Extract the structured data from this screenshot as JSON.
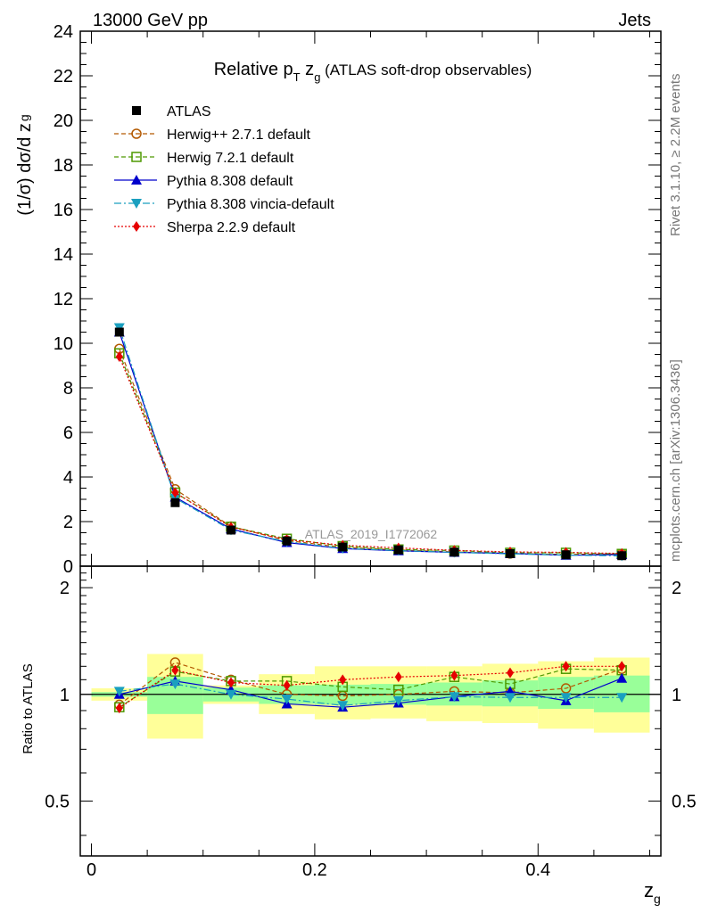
{
  "header": {
    "left": "13000 GeV pp",
    "right": "Jets"
  },
  "side_text": {
    "top": "Rivet 3.1.10, ≥ 2.2M events",
    "bottom": "mcplots.cern.ch [arXiv:1306.3436]"
  },
  "watermark": "ATLAS_2019_I1772062",
  "chart_data": [
    {
      "type": "line",
      "panel": "main",
      "title": "Relative p_T z_g (ATLAS soft-drop observables)",
      "title_parts": {
        "pre": "Relative p",
        "sub1": "T",
        "mid": " z",
        "sub2": "g",
        "post": " (ATLAS soft-drop observables)"
      },
      "ylabel": "(1/σ) dσ/d z_g",
      "ylabel_parts": {
        "main": "(1/σ) dσ/d z",
        "sub": "g"
      },
      "xlabel": "z_g",
      "ylim": [
        0,
        24
      ],
      "xlim": [
        -0.01,
        0.51
      ],
      "yticks": [
        0,
        2,
        4,
        6,
        8,
        10,
        12,
        14,
        16,
        18,
        20,
        22,
        24
      ],
      "x": [
        0.025,
        0.075,
        0.125,
        0.175,
        0.225,
        0.275,
        0.325,
        0.375,
        0.425,
        0.475
      ],
      "series": [
        {
          "name": "ATLAS",
          "color": "#000000",
          "marker": "square",
          "values": [
            10.5,
            2.85,
            1.62,
            1.13,
            0.86,
            0.73,
            0.63,
            0.56,
            0.51,
            0.47
          ]
        },
        {
          "name": "Herwig++ 2.7.1 default",
          "color": "#b35900",
          "marker": "circle-open",
          "dash": "5,3",
          "values": [
            9.75,
            3.45,
            1.78,
            1.15,
            0.85,
            0.73,
            0.64,
            0.565,
            0.53,
            0.55
          ]
        },
        {
          "name": "Herwig 7.2.1 default",
          "color": "#4d9900",
          "marker": "square-open",
          "dash": "5,3",
          "values": [
            9.55,
            3.3,
            1.77,
            1.23,
            0.9,
            0.75,
            0.7,
            0.6,
            0.6,
            0.55
          ]
        },
        {
          "name": "Pythia 8.308 default",
          "color": "#0000cc",
          "marker": "triangle-up",
          "dash": "",
          "values": [
            10.5,
            3.1,
            1.67,
            1.06,
            0.79,
            0.69,
            0.62,
            0.57,
            0.49,
            0.52
          ]
        },
        {
          "name": "Pythia 8.308 vincia-default",
          "color": "#1a9fbf",
          "marker": "triangle-down",
          "dash": "8,3,2,3",
          "values": [
            10.7,
            3.05,
            1.62,
            1.1,
            0.8,
            0.7,
            0.62,
            0.55,
            0.5,
            0.46
          ]
        },
        {
          "name": "Sherpa 2.2.9 default",
          "color": "#e60000",
          "marker": "diamond",
          "dash": "2,2",
          "values": [
            9.4,
            3.3,
            1.75,
            1.19,
            0.94,
            0.82,
            0.71,
            0.64,
            0.62,
            0.57
          ]
        }
      ]
    },
    {
      "type": "line",
      "panel": "ratio",
      "ylabel": "Ratio to ATLAS",
      "ylim": [
        0.35,
        2.3
      ],
      "yscale": "log",
      "yticks": [
        0.5,
        1,
        2
      ],
      "x": [
        0.025,
        0.075,
        0.125,
        0.175,
        0.225,
        0.275,
        0.325,
        0.375,
        0.425,
        0.475
      ],
      "band_inner": {
        "color": "#99ff99",
        "lo": [
          0.985,
          0.88,
          0.955,
          0.94,
          0.935,
          0.935,
          0.93,
          0.925,
          0.91,
          0.89
        ],
        "hi": [
          1.015,
          1.12,
          1.045,
          1.06,
          1.065,
          1.07,
          1.08,
          1.095,
          1.12,
          1.13
        ]
      },
      "band_outer": {
        "color": "#ffff99",
        "lo": [
          0.96,
          0.75,
          0.94,
          0.88,
          0.85,
          0.855,
          0.84,
          0.83,
          0.8,
          0.78
        ],
        "hi": [
          1.04,
          1.3,
          1.06,
          1.14,
          1.2,
          1.2,
          1.2,
          1.22,
          1.24,
          1.27
        ]
      },
      "series": [
        {
          "name": "Herwig++ 2.7.1 default",
          "values": [
            0.935,
            1.23,
            1.1,
            1.0,
            0.99,
            1.0,
            1.02,
            1.01,
            1.04,
            1.18
          ]
        },
        {
          "name": "Herwig 7.2.1 default",
          "values": [
            0.92,
            1.16,
            1.09,
            1.09,
            1.05,
            1.03,
            1.12,
            1.07,
            1.18,
            1.17
          ]
        },
        {
          "name": "Pythia 8.308 default",
          "values": [
            1.0,
            1.09,
            1.03,
            0.94,
            0.92,
            0.945,
            0.985,
            1.02,
            0.96,
            1.11
          ]
        },
        {
          "name": "Pythia 8.308 vincia-default",
          "values": [
            1.02,
            1.07,
            1.0,
            0.97,
            0.93,
            0.96,
            0.985,
            0.98,
            0.98,
            0.98
          ]
        },
        {
          "name": "Sherpa 2.2.9 default",
          "values": [
            0.915,
            1.17,
            1.08,
            1.06,
            1.1,
            1.12,
            1.13,
            1.15,
            1.2,
            1.2
          ]
        }
      ]
    }
  ],
  "xaxis": {
    "ticks": [
      0,
      0.2,
      0.4
    ],
    "tick_labels": [
      "0",
      "0.2",
      "0.4"
    ],
    "label_main": "z",
    "label_sub": "g"
  },
  "ratio_tick_labels": [
    "0.5",
    "1",
    "2"
  ]
}
